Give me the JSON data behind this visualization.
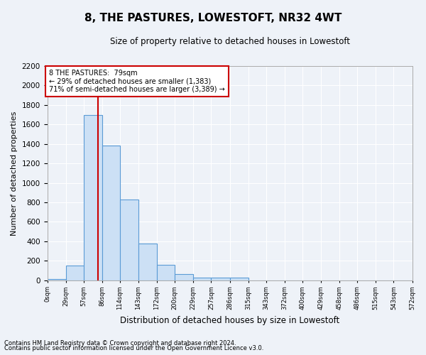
{
  "title": "8, THE PASTURES, LOWESTOFT, NR32 4WT",
  "subtitle": "Size of property relative to detached houses in Lowestoft",
  "xlabel": "Distribution of detached houses by size in Lowestoft",
  "ylabel": "Number of detached properties",
  "bin_edges": [
    0,
    29,
    57,
    86,
    114,
    143,
    172,
    200,
    229,
    257,
    286,
    315,
    343,
    372,
    400,
    429,
    458,
    486,
    515,
    543,
    572
  ],
  "bar_heights": [
    10,
    150,
    1700,
    1380,
    830,
    380,
    160,
    65,
    30,
    25,
    25,
    0,
    0,
    0,
    0,
    0,
    0,
    0,
    0,
    0
  ],
  "bar_color": "#cce0f5",
  "bar_edge_color": "#5b9bd5",
  "property_size": 79,
  "annotation_line1": "8 THE PASTURES:  79sqm",
  "annotation_line2": "← 29% of detached houses are smaller (1,383)",
  "annotation_line3": "71% of semi-detached houses are larger (3,389) →",
  "annotation_box_color": "#ffffff",
  "annotation_box_edge_color": "#cc0000",
  "red_line_color": "#cc0000",
  "ylim": [
    0,
    2200
  ],
  "yticks": [
    0,
    200,
    400,
    600,
    800,
    1000,
    1200,
    1400,
    1600,
    1800,
    2000,
    2200
  ],
  "footer_line1": "Contains HM Land Registry data © Crown copyright and database right 2024.",
  "footer_line2": "Contains public sector information licensed under the Open Government Licence v3.0.",
  "bg_color": "#eef2f8",
  "grid_color": "#ffffff"
}
